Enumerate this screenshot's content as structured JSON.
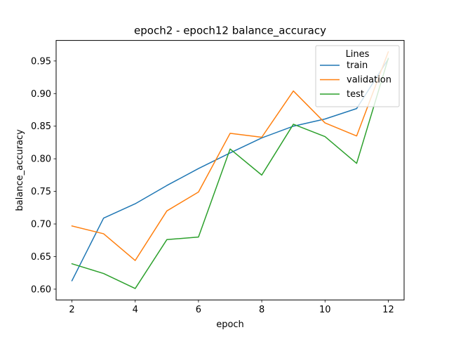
{
  "chart_data": {
    "type": "line",
    "title": "epoch2 - epoch12 balance_accuracy",
    "xlabel": "epoch",
    "ylabel": "balance_accuracy",
    "xlim": [
      1.5,
      12.5
    ],
    "ylim": [
      0.5835,
      0.9815
    ],
    "xticks": [
      2,
      4,
      6,
      8,
      10,
      12
    ],
    "yticks": [
      0.6,
      0.65,
      0.7,
      0.75,
      0.8,
      0.85,
      0.9,
      0.95
    ],
    "grid": false,
    "legend": {
      "title": "Lines",
      "placement": "upper right"
    },
    "x": [
      2,
      3,
      4,
      5,
      6,
      7,
      8,
      9,
      10,
      11,
      12
    ],
    "series": [
      {
        "name": "train",
        "color": "#1f77b4",
        "values": [
          0.613,
          0.709,
          0.731,
          0.759,
          0.785,
          0.809,
          0.832,
          0.85,
          0.861,
          0.877,
          0.953
        ]
      },
      {
        "name": "validation",
        "color": "#ff7f0e",
        "values": [
          0.697,
          0.685,
          0.644,
          0.72,
          0.749,
          0.839,
          0.833,
          0.904,
          0.855,
          0.835,
          0.964
        ]
      },
      {
        "name": "test",
        "color": "#2ca02c",
        "values": [
          0.639,
          0.624,
          0.601,
          0.676,
          0.68,
          0.815,
          0.775,
          0.853,
          0.834,
          0.793,
          0.954
        ]
      }
    ]
  }
}
